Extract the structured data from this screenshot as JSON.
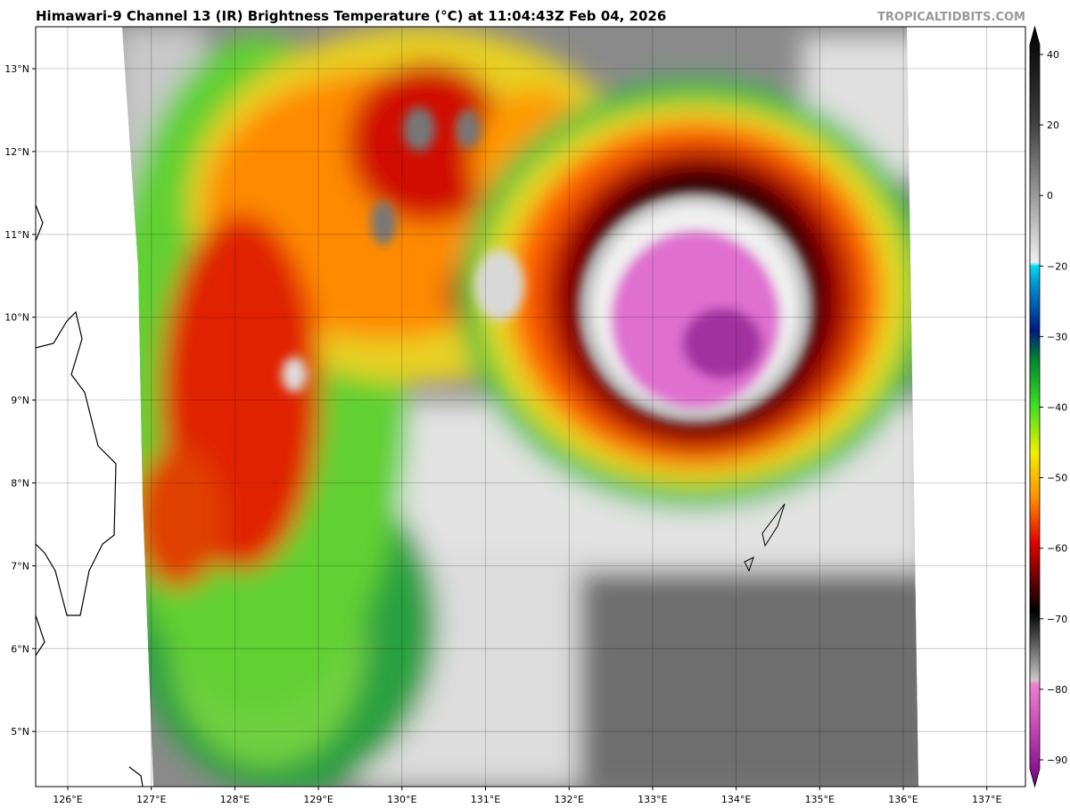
{
  "header": {
    "title": "Himawari-9 Channel 13 (IR) Brightness Temperature (°C) at 11:04:43Z Feb 04, 2026",
    "credit": "TROPICALTIDBITS.COM"
  },
  "map": {
    "lat_labels": [
      "13°N",
      "12°N",
      "11°N",
      "10°N",
      "9°N",
      "8°N",
      "7°N",
      "6°N",
      "5°N"
    ],
    "lon_labels": [
      "126°E",
      "127°E",
      "128°E",
      "129°E",
      "130°E",
      "131°E",
      "132°E",
      "133°E",
      "134°E",
      "135°E",
      "136°E",
      "137°E"
    ]
  },
  "colorbar": {
    "labels": [
      "40",
      "20",
      "0",
      "−20",
      "−30",
      "−40",
      "−50",
      "−60",
      "−70",
      "−80",
      "−90"
    ]
  }
}
